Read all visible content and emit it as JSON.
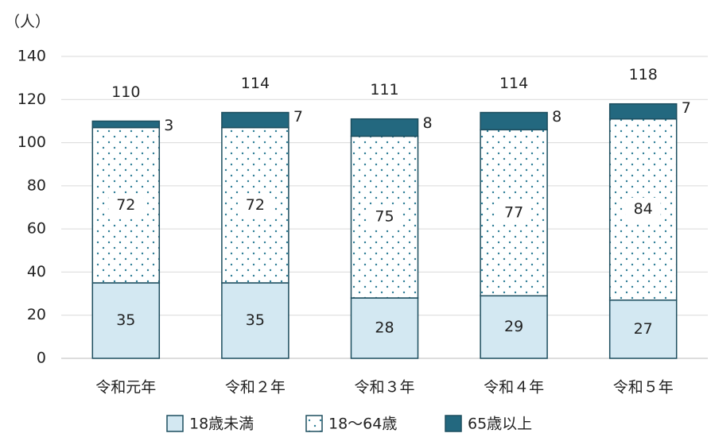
{
  "chart_data": {
    "type": "stacked_bar",
    "y_unit": "（人）",
    "categories": [
      "令和元年",
      "令和２年",
      "令和３年",
      "令和４年",
      "令和５年"
    ],
    "series": [
      {
        "name": "18歳未満",
        "color": "#d3e8f2",
        "values": [
          35,
          35,
          28,
          29,
          27
        ]
      },
      {
        "name": "18〜64歳",
        "color": "#2e7d96",
        "pattern": "dotted",
        "values": [
          72,
          72,
          75,
          77,
          84
        ]
      },
      {
        "name": "65歳以上",
        "color": "#23687f",
        "values": [
          3,
          7,
          8,
          8,
          7
        ]
      }
    ],
    "totals": [
      110,
      114,
      111,
      114,
      118
    ],
    "ylim": [
      0,
      140
    ],
    "yticks": [
      0,
      20,
      40,
      60,
      80,
      100,
      120,
      140
    ],
    "grid": true,
    "legend": "bottom"
  }
}
